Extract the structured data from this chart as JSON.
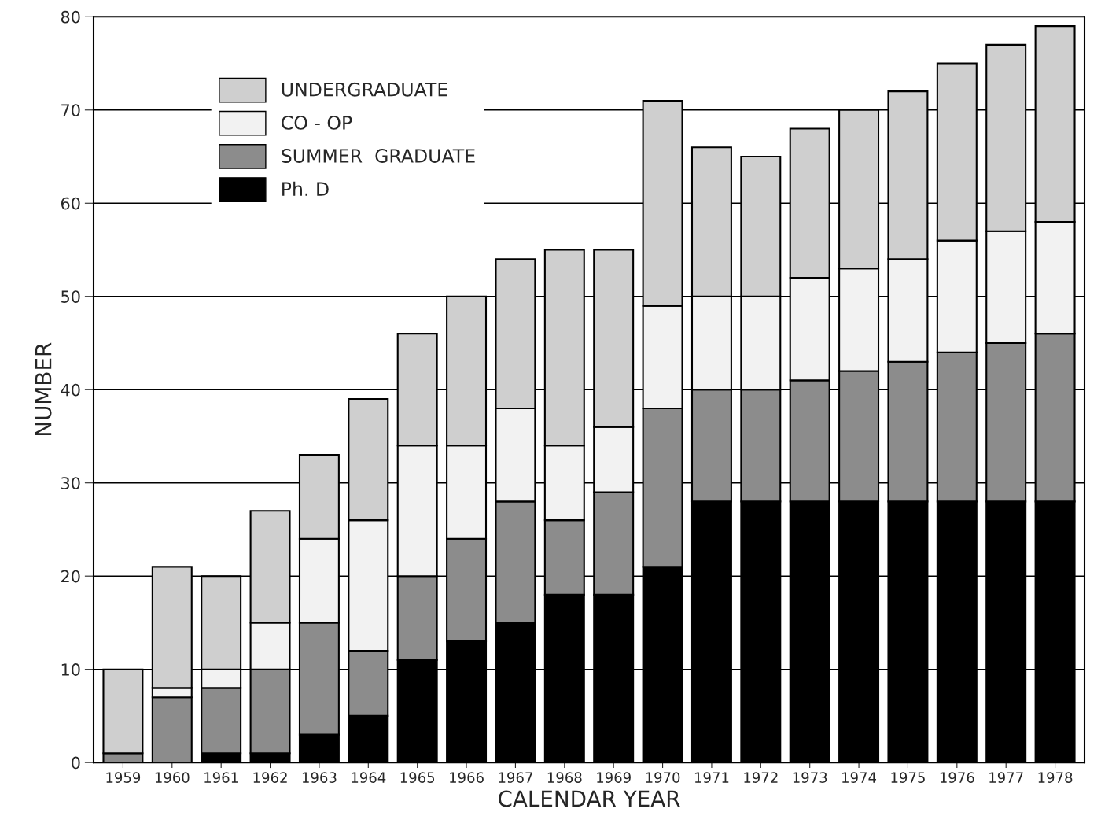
{
  "chart_data": {
    "type": "bar",
    "stacked": true,
    "xlabel": "CALENDAR YEAR",
    "ylabel": "NUMBER",
    "categories": [
      "1959",
      "1960",
      "1961",
      "1962",
      "1963",
      "1964",
      "1965",
      "1966",
      "1967",
      "1968",
      "1969",
      "1970",
      "1971",
      "1972",
      "1973",
      "1974",
      "1975",
      "1976",
      "1977",
      "1978"
    ],
    "series": [
      {
        "name": "Ph. D",
        "color": "#000000",
        "values": [
          0,
          0,
          1,
          1,
          3,
          5,
          11,
          13,
          15,
          18,
          18,
          21,
          28,
          28,
          28,
          28,
          28,
          28,
          28,
          28
        ]
      },
      {
        "name": "SUMMER  GRADUATE",
        "color": "#8c8c8c",
        "values": [
          1,
          7,
          7,
          9,
          12,
          7,
          9,
          11,
          13,
          8,
          11,
          17,
          12,
          12,
          13,
          14,
          15,
          16,
          17,
          18
        ]
      },
      {
        "name": "CO - OP",
        "color": "#f2f2f2",
        "values": [
          0,
          1,
          2,
          5,
          9,
          14,
          14,
          10,
          10,
          8,
          7,
          11,
          10,
          10,
          11,
          11,
          11,
          12,
          12,
          12
        ]
      },
      {
        "name": "UNDERGRADUATE",
        "color": "#cfcfcf",
        "values": [
          9,
          13,
          10,
          12,
          9,
          13,
          12,
          16,
          16,
          21,
          19,
          22,
          16,
          15,
          16,
          17,
          18,
          19,
          20,
          21
        ]
      }
    ],
    "ylim": [
      0,
      80
    ],
    "yticks": [
      0,
      10,
      20,
      30,
      40,
      50,
      60,
      70,
      80
    ],
    "grid": "y",
    "legend": "top left"
  }
}
